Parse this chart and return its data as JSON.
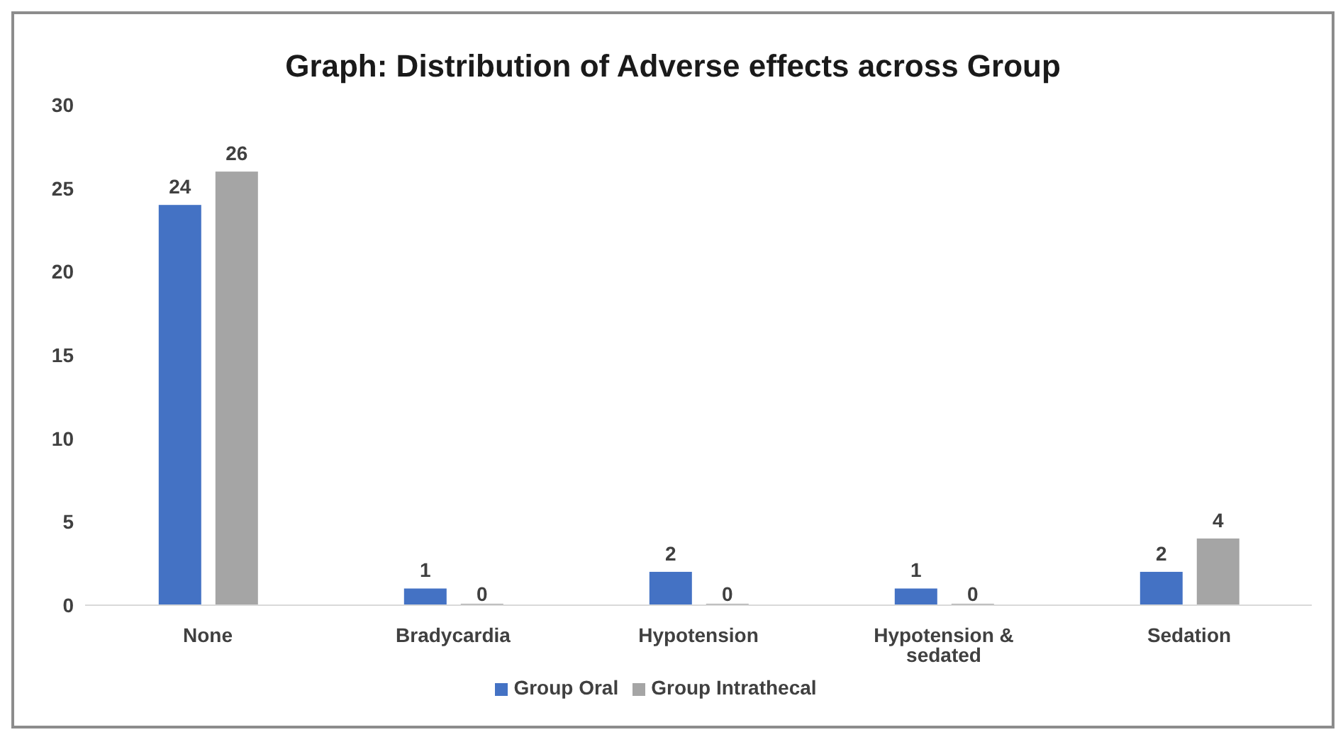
{
  "chart_data": {
    "type": "bar",
    "title": "Graph: Distribution of Adverse effects across Group",
    "categories": [
      "None",
      "Bradycardia",
      "Hypotension",
      "Hypotension & sedated",
      "Sedation"
    ],
    "series": [
      {
        "name": "Group Oral",
        "color": "#4472c4",
        "values": [
          24,
          1,
          2,
          1,
          2
        ]
      },
      {
        "name": "Group Intrathecal",
        "color": "#a5a5a5",
        "values": [
          26,
          0,
          0,
          0,
          4
        ]
      }
    ],
    "ylim": [
      0,
      30
    ],
    "yticks": [
      0,
      5,
      10,
      15,
      20,
      25,
      30
    ],
    "data_labels": true,
    "legend": "bottom",
    "grid": false
  }
}
